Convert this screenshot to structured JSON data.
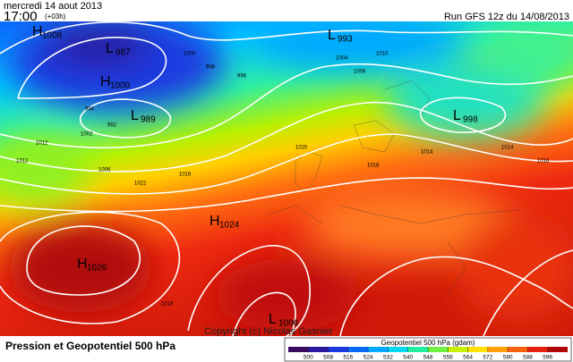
{
  "header": {
    "date": "mercredi 14 aout 2013",
    "time": "17:00",
    "offset": "(+03h)",
    "run": "Run GFS 12z du 14/08/2013"
  },
  "footer": {
    "title": "Pression et Geopotentiel 500 hPa",
    "copyright": "Copyright (c) Nicolas Gasnier"
  },
  "colorbar": {
    "label": "Geopotentiel 500 hPa (gdam)",
    "ticks": [
      500,
      508,
      516,
      524,
      532,
      540,
      548,
      556,
      564,
      572,
      580,
      588,
      596
    ],
    "colors": [
      "#3a0a60",
      "#2a1aa0",
      "#1a3ae0",
      "#0a6aff",
      "#00a8ff",
      "#00d8f0",
      "#20f0a0",
      "#70f040",
      "#c8f000",
      "#ffe000",
      "#ffa000",
      "#ff6010",
      "#e82010",
      "#b00808"
    ]
  },
  "centers": [
    {
      "letter": "H",
      "value": "1008"
    },
    {
      "letter": "L",
      "value": "987"
    },
    {
      "letter": "H",
      "value": "1000"
    },
    {
      "letter": "L",
      "value": "989"
    },
    {
      "letter": "L",
      "value": "993"
    },
    {
      "letter": "L",
      "value": "998"
    },
    {
      "letter": "H",
      "value": "1024"
    },
    {
      "letter": "H",
      "value": "1026"
    },
    {
      "letter": "L",
      "value": "1006"
    }
  ],
  "isobar_labels": [
    "1000",
    "998",
    "996",
    "994",
    "992",
    "1004",
    "1008",
    "1012",
    "1016",
    "1020",
    "1010",
    "1014",
    "1018",
    "1022",
    "1002",
    "1006",
    "1014",
    "1016",
    "1012",
    "1018"
  ]
}
